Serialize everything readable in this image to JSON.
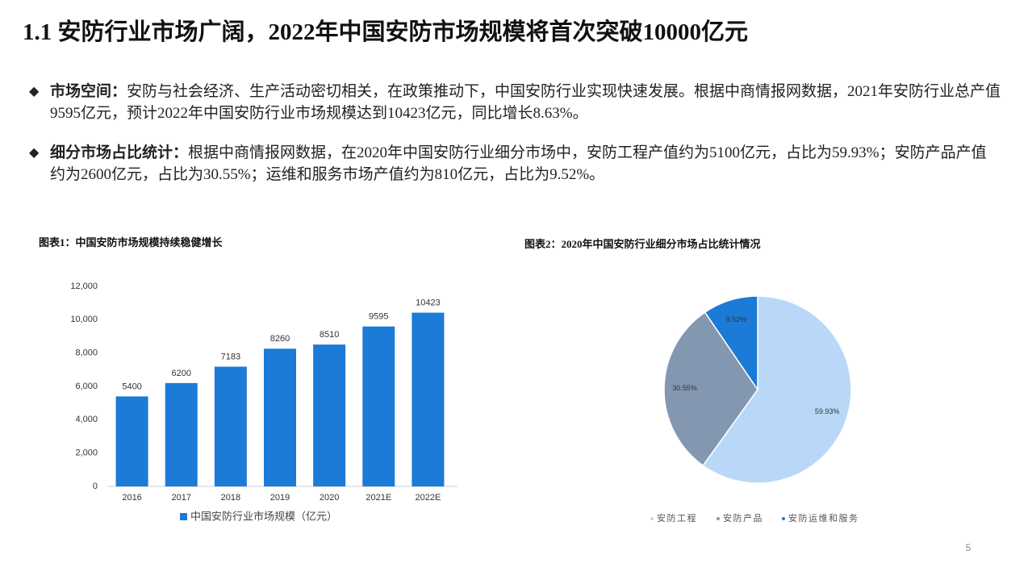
{
  "title": "1.1 安防行业市场广阔，2022年中国安防市场规模将首次突破10000亿元",
  "bullets": [
    {
      "label": "市场空间：",
      "text": "安防与社会经济、生产活动密切相关，在政策推动下，中国安防行业实现快速发展。根据中商情报网数据，2021年安防行业总产值9595亿元，预计2022年中国安防行业市场规模达到10423亿元，同比增长8.63%。"
    },
    {
      "label": "细分市场占比统计：",
      "text": "根据中商情报网数据，在2020年中国安防行业细分市场中，安防工程产值约为5100亿元，占比为59.93%；安防产品产值约为2600亿元，占比为30.55%；运维和服务市场产值约为810亿元，占比为9.52%。"
    }
  ],
  "chart_data": [
    {
      "type": "bar",
      "title": "图表1：中国安防市场规模持续稳健增长",
      "categories": [
        "2016",
        "2017",
        "2018",
        "2019",
        "2020",
        "2021E",
        "2022E"
      ],
      "series": [
        {
          "name": "中国安防行业市场规模（亿元）",
          "color": "#1b7bd6",
          "values": [
            5400,
            6200,
            7183,
            8260,
            8510,
            9595,
            10423
          ]
        }
      ],
      "ylim": [
        0,
        12000
      ],
      "yticks": [
        0,
        {
          "value": 2000,
          "label": "2,000"
        },
        {
          "value": 4000,
          "label": "4,000"
        },
        {
          "value": 6000,
          "label": "6,000"
        },
        {
          "value": 8000,
          "label": "8,000"
        },
        {
          "value": 10000,
          "label": "10,000"
        },
        {
          "value": 12000,
          "label": "12,000"
        }
      ]
    },
    {
      "type": "pie",
      "title": "图表2：2020年中国安防行业细分市场占比统计情况",
      "categories": [
        "安防工程",
        "安防产品",
        "安防运维和服务"
      ],
      "values": [
        59.93,
        30.55,
        9.52
      ],
      "value_labels": [
        "59.93%",
        "30.55%",
        "9.52%"
      ],
      "colors": [
        "#b9d8f7",
        "#8497b0",
        "#1b7bd6"
      ]
    }
  ],
  "page_number": "5"
}
